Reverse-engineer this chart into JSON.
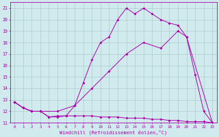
{
  "xlabel": "Windchill (Refroidissement éolien,°C)",
  "background_color": "#d0eaee",
  "grid_color": "#aacccc",
  "line_color": "#aa00aa",
  "xlim": [
    -0.5,
    23.5
  ],
  "ylim": [
    11,
    21.5
  ],
  "yticks": [
    11,
    12,
    13,
    14,
    15,
    16,
    17,
    18,
    19,
    20,
    21
  ],
  "xticks": [
    0,
    1,
    2,
    3,
    4,
    5,
    6,
    7,
    8,
    9,
    10,
    11,
    12,
    13,
    14,
    15,
    16,
    17,
    18,
    19,
    20,
    21,
    22,
    23
  ],
  "line1_x": [
    0,
    1,
    2,
    3,
    4,
    5,
    6,
    7,
    8,
    9,
    10,
    11,
    12,
    13,
    14,
    15,
    16,
    17,
    18,
    19,
    20,
    21,
    22,
    23
  ],
  "line1_y": [
    12.8,
    12.3,
    12.0,
    12.0,
    11.5,
    11.6,
    11.6,
    11.6,
    11.6,
    11.6,
    11.5,
    11.5,
    11.5,
    11.4,
    11.4,
    11.4,
    11.3,
    11.3,
    11.2,
    11.2,
    11.1,
    11.1,
    11.1,
    11.0
  ],
  "line2_x": [
    0,
    1,
    2,
    3,
    4,
    5,
    6,
    7,
    8,
    9,
    10,
    11,
    12,
    13,
    14,
    15,
    16,
    17,
    18,
    19,
    20,
    21,
    22,
    23
  ],
  "line2_y": [
    12.8,
    12.3,
    12.0,
    12.0,
    11.5,
    11.5,
    11.6,
    12.5,
    14.5,
    16.5,
    18.0,
    18.5,
    20.0,
    21.0,
    20.5,
    21.0,
    20.5,
    20.0,
    19.7,
    19.5,
    18.5,
    15.2,
    12.0,
    11.0
  ],
  "line3_x": [
    0,
    1,
    2,
    3,
    5,
    7,
    9,
    11,
    13,
    15,
    17,
    19,
    20,
    23
  ],
  "line3_y": [
    12.8,
    12.3,
    12.0,
    12.0,
    12.0,
    12.5,
    14.0,
    15.5,
    17.0,
    18.0,
    17.5,
    19.0,
    18.5,
    11.0
  ]
}
